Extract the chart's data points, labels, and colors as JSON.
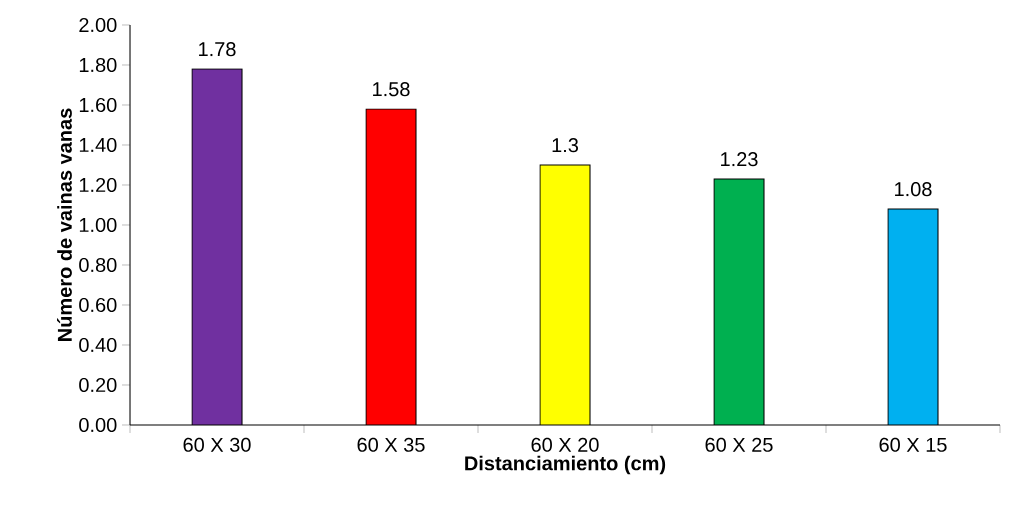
{
  "chart_data": {
    "type": "bar",
    "xlabel": "Distanciamiento (cm)",
    "ylabel": "Número de vainas vanas",
    "categories": [
      "60 X 30",
      "60 X 35",
      "60 X 20",
      "60 X 25",
      "60 X 15"
    ],
    "values": [
      1.78,
      1.58,
      1.3,
      1.23,
      1.08
    ],
    "value_labels": [
      "1.78",
      "1.58",
      "1.3",
      "1.23",
      "1.08"
    ],
    "colors": [
      "#7030a0",
      "#ff0000",
      "#ffff00",
      "#00b050",
      "#00b0f0"
    ],
    "ylim": [
      0,
      2
    ],
    "yticks": [
      {
        "value": 0,
        "label": "0.00"
      },
      {
        "value": 0.2,
        "label": "0.20"
      },
      {
        "value": 0.4,
        "label": "0.40"
      },
      {
        "value": 0.6,
        "label": "0.60"
      },
      {
        "value": 0.8,
        "label": "0.80"
      },
      {
        "value": 1,
        "label": "1.00"
      },
      {
        "value": 1.2,
        "label": "1.20"
      },
      {
        "value": 1.4,
        "label": "1.40"
      },
      {
        "value": 1.6,
        "label": "1.60"
      },
      {
        "value": 1.8,
        "label": "1.80"
      },
      {
        "value": 2,
        "label": "2.00"
      }
    ],
    "grid": false
  }
}
